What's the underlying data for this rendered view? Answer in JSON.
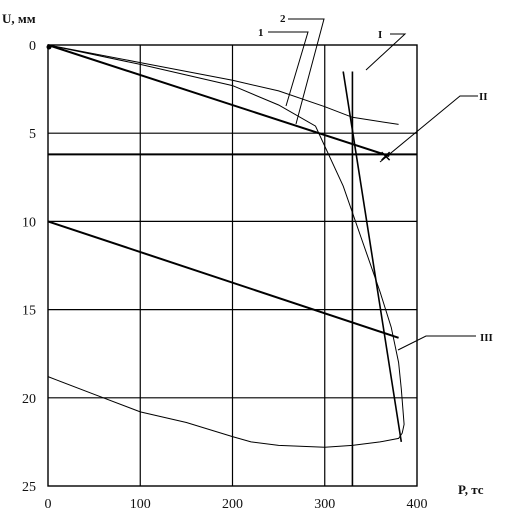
{
  "chart_data": {
    "type": "line",
    "title": "",
    "xlabel": "P, тс",
    "ylabel": "U, мм",
    "xlim": [
      0,
      400
    ],
    "ylim": [
      0,
      25
    ],
    "y_inverted": true,
    "grid": true,
    "x_ticks": [
      "0",
      "100",
      "200",
      "300",
      "400"
    ],
    "y_ticks": [
      "0",
      "5",
      "10",
      "15",
      "20",
      "25"
    ],
    "series": [
      {
        "name": "1",
        "points": [
          [
            0,
            0
          ],
          [
            100,
            1.0
          ],
          [
            200,
            2.0
          ],
          [
            250,
            2.6
          ],
          [
            300,
            3.5
          ],
          [
            330,
            4.1
          ],
          [
            380,
            4.5
          ]
        ]
      },
      {
        "name": "2",
        "points": [
          [
            0,
            0
          ],
          [
            100,
            1.1
          ],
          [
            200,
            2.3
          ],
          [
            250,
            3.4
          ],
          [
            290,
            4.6
          ],
          [
            320,
            8.0
          ],
          [
            340,
            11.0
          ],
          [
            360,
            14.0
          ],
          [
            372,
            16.0
          ],
          [
            380,
            18.0
          ],
          [
            383,
            19.5
          ],
          [
            386,
            21.5
          ],
          [
            384,
            22.0
          ],
          [
            380,
            22.3
          ],
          [
            360,
            22.5
          ],
          [
            330,
            22.7
          ],
          [
            300,
            22.8
          ],
          [
            250,
            22.7
          ],
          [
            220,
            22.5
          ],
          [
            200,
            22.2
          ],
          [
            150,
            21.4
          ],
          [
            100,
            20.8
          ],
          [
            50,
            19.8
          ],
          [
            10,
            19.0
          ],
          [
            0,
            18.8
          ]
        ]
      },
      {
        "name": "I",
        "points": [
          [
            320,
            1.5
          ],
          [
            383,
            22.5
          ]
        ]
      },
      {
        "name": "II",
        "points": [
          [
            0,
            0
          ],
          [
            370,
            6.3
          ]
        ]
      },
      {
        "name": "III",
        "points": [
          [
            0,
            10
          ],
          [
            380,
            16.6
          ]
        ]
      }
    ],
    "horizontal_lines": [
      6.2
    ],
    "vertical_lines": [
      330
    ],
    "labels": [
      "1",
      "2",
      "1",
      "I",
      "II",
      "III"
    ]
  }
}
